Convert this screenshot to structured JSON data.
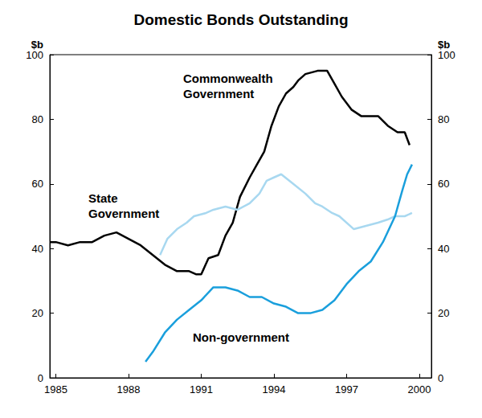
{
  "chart_data": {
    "type": "line",
    "title": "Domestic Bonds Outstanding",
    "y_label": "$b",
    "xlim": [
      1984.75,
      2000.5
    ],
    "xticks": [
      1985,
      1988,
      1991,
      1994,
      1997,
      2000
    ],
    "ylim": [
      0,
      100
    ],
    "yticks": [
      0,
      20,
      40,
      60,
      80
    ],
    "grid": false,
    "series": [
      {
        "name": "Commonwealth Government",
        "color": "#000000",
        "x": [
          1984.75,
          1985,
          1985.5,
          1986,
          1986.5,
          1987,
          1987.5,
          1988,
          1988.5,
          1989,
          1989.5,
          1990,
          1990.5,
          1990.8,
          1991,
          1991.3,
          1991.7,
          1992,
          1992.3,
          1992.6,
          1993,
          1993.3,
          1993.6,
          1993.9,
          1994.2,
          1994.5,
          1994.8,
          1995,
          1995.3,
          1995.8,
          1996.2,
          1996.5,
          1996.8,
          1997.2,
          1997.6,
          1998.3,
          1998.7,
          1999.1,
          1999.4,
          1999.6
        ],
        "values": [
          42,
          42,
          41,
          42,
          42,
          44,
          45,
          43,
          41,
          38,
          35,
          33,
          33,
          32,
          32,
          37,
          38,
          44,
          48,
          56,
          62,
          66,
          70,
          78,
          84,
          88,
          90,
          92,
          94,
          95,
          95,
          91,
          87,
          83,
          81,
          81,
          78,
          76,
          76,
          72
        ]
      },
      {
        "name": "State Government",
        "color": "#a8d8f0",
        "x": [
          1989.3,
          1989.6,
          1990,
          1990.4,
          1990.7,
          1991.2,
          1991.5,
          1992,
          1992.5,
          1993,
          1993.4,
          1993.7,
          1994,
          1994.3,
          1994.8,
          1995.3,
          1995.7,
          1996,
          1996.4,
          1996.7,
          1997.3,
          1997.8,
          1998.3,
          1998.7,
          1999,
          1999.4,
          1999.7
        ],
        "values": [
          38,
          43,
          46,
          48,
          50,
          51,
          52,
          53,
          52,
          54,
          57,
          61,
          62,
          63,
          60,
          57,
          54,
          53,
          51,
          50,
          46,
          47,
          48,
          49,
          50,
          50,
          51
        ]
      },
      {
        "name": "Non-government",
        "color": "#1a9fdc",
        "x": [
          1988.7,
          1989,
          1989.5,
          1990,
          1990.5,
          1991,
          1991.5,
          1992,
          1992.5,
          1993,
          1993.5,
          1994,
          1994.5,
          1995,
          1995.5,
          1996,
          1996.5,
          1997,
          1997.5,
          1998,
          1998.5,
          1999,
          1999.3,
          1999.5,
          1999.7
        ],
        "values": [
          5,
          8,
          14,
          18,
          21,
          24,
          28,
          28,
          27,
          25,
          25,
          23,
          22,
          20,
          20,
          21,
          24,
          29,
          33,
          36,
          42,
          50,
          58,
          63,
          66
        ]
      }
    ]
  }
}
